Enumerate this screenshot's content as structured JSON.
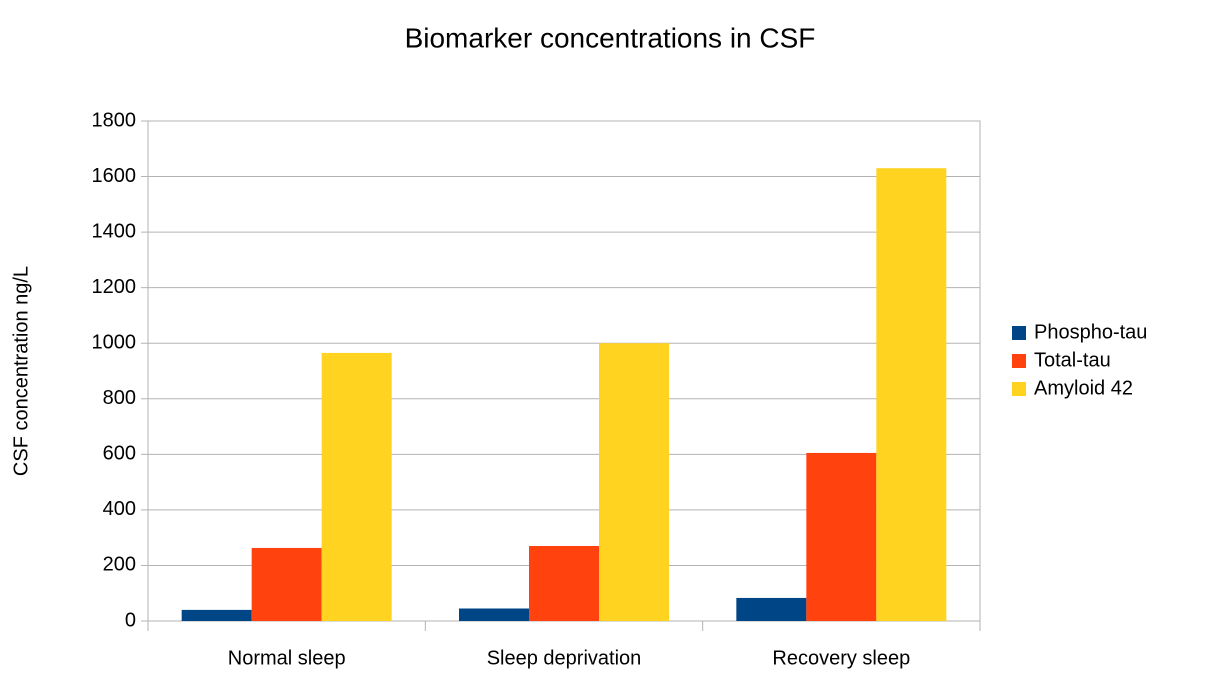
{
  "chart_data": {
    "type": "bar",
    "title": "Biomarker concentrations in CSF",
    "y_label": "CSF concentration ng/L",
    "categories": [
      "Normal sleep",
      "Sleep deprivation",
      "Recovery sleep"
    ],
    "series": [
      {
        "name": "Phospho-tau",
        "color": "#004586",
        "values": [
          40,
          45,
          83
        ]
      },
      {
        "name": "Total-tau",
        "color": "#ff420e",
        "values": [
          263,
          270,
          605
        ]
      },
      {
        "name": "Amyloid 42",
        "color": "#ffd320",
        "values": [
          965,
          1000,
          1630
        ]
      }
    ],
    "ylim": [
      0,
      1800
    ],
    "yticks": [
      0,
      200,
      400,
      600,
      800,
      1000,
      1200,
      1400,
      1600,
      1800
    ],
    "grid": true,
    "legend": "right"
  }
}
